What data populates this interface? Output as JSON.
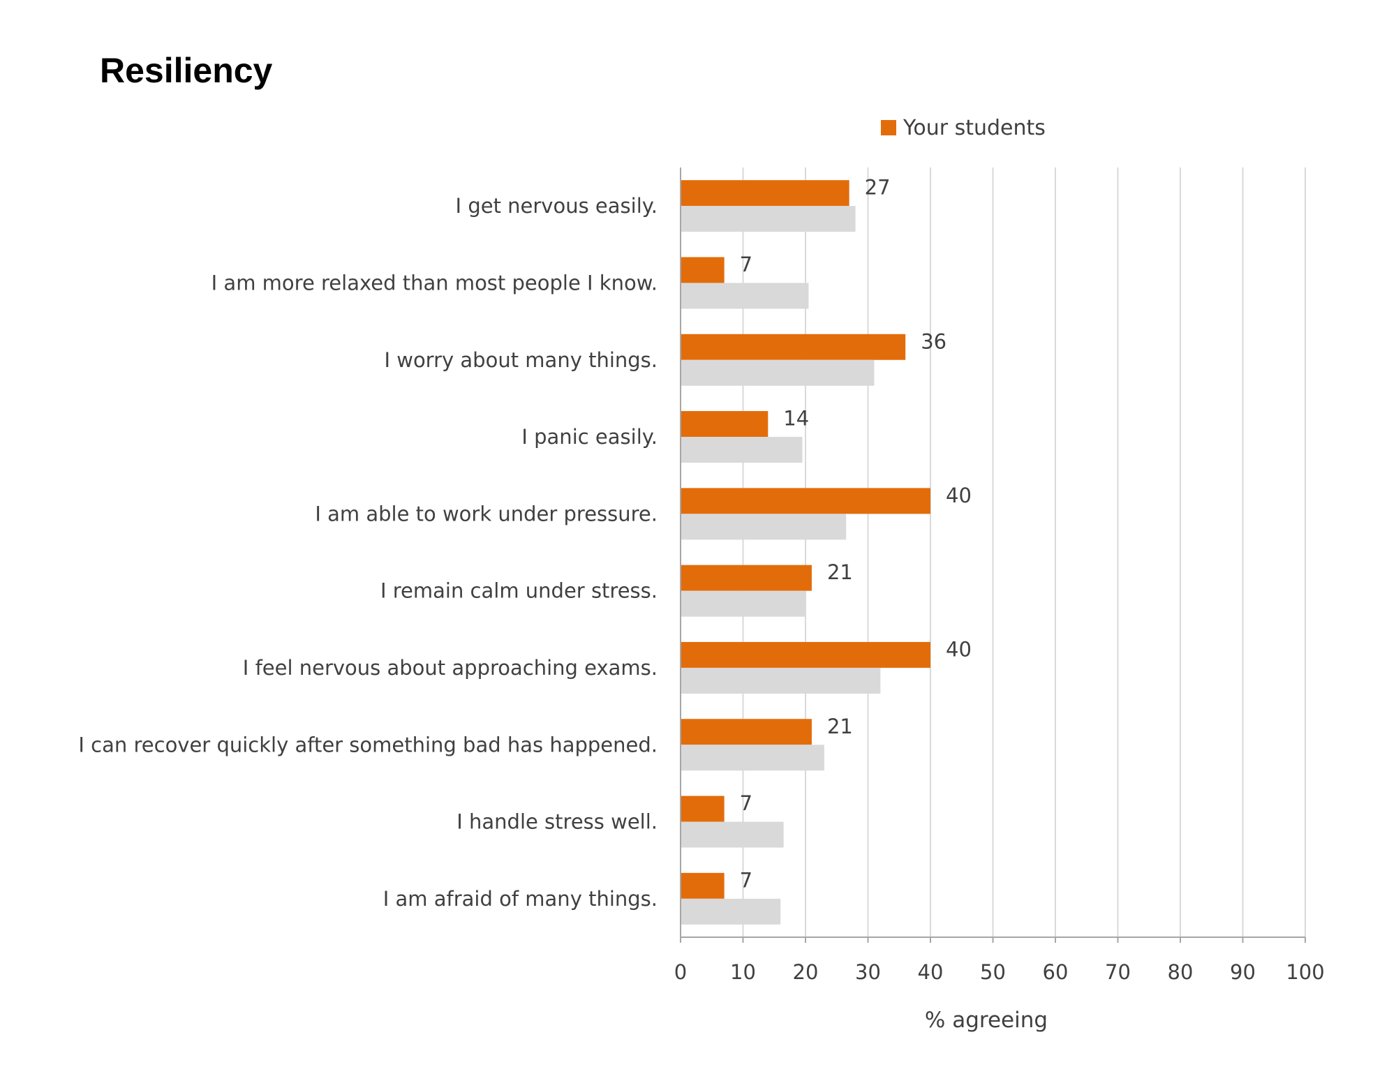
{
  "chart_data": {
    "type": "bar",
    "orientation": "horizontal",
    "title": "Resiliency",
    "xlabel": "% agreeing",
    "ylabel": "",
    "xlim": [
      0,
      100
    ],
    "xticks": [
      "0",
      "10",
      "20",
      "30",
      "40",
      "50",
      "60",
      "70",
      "80",
      "90",
      "100"
    ],
    "grid": true,
    "legend_position": "top",
    "categories": [
      "I get nervous easily.",
      "I am more relaxed than most people I know.",
      "I worry about many things.",
      "I panic easily.",
      "I am able to work under pressure.",
      "I remain calm under stress.",
      "I feel nervous about approaching exams.",
      "I can recover quickly after something bad has happened.",
      "I handle stress well.",
      "I am afraid of many things."
    ],
    "series": [
      {
        "name": "Your students",
        "color": "#e36c0a",
        "show_labels": true,
        "in_legend": true,
        "values": [
          27,
          7,
          36,
          14,
          40,
          21,
          40,
          21,
          7,
          7
        ]
      },
      {
        "name": "",
        "color": "#d9d9d9",
        "show_labels": false,
        "in_legend": false,
        "values": [
          28,
          20.5,
          31,
          19.5,
          26.5,
          20,
          32,
          23,
          16.5,
          16
        ]
      }
    ]
  }
}
